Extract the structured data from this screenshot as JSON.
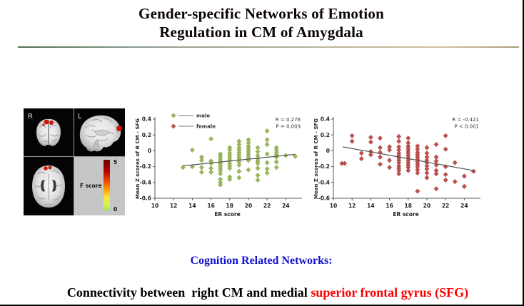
{
  "slide": {
    "title_line1": "Gender-specific Networks of Emotion",
    "title_line2": "Regulation in CM of Amygdala",
    "footer": {
      "line1": "Cognition Related Networks:",
      "line1_color": "#1212cf",
      "line2_black": "Connectivity between  right CM and medial ",
      "line2_red": "superior frontal gyrus (SFG)",
      "line2_red_color": "#fd0000"
    }
  },
  "brain_panel": {
    "label_r": "R",
    "label_l": "L",
    "activation_color": "#cf1408",
    "colorbar": {
      "title": "F score",
      "max_label": "5",
      "min_label": "0",
      "top_color": "#6b0000",
      "bottom_color": "#9fe84e"
    }
  },
  "chart_data": [
    {
      "type": "scatter",
      "series_name": "male",
      "marker_color": "#9bbb59",
      "marker_stroke": "#7a9a3e",
      "xlabel": "ER score",
      "ylabel": "Mean Z scores of R CM - SFG",
      "xlim": [
        10,
        25.5
      ],
      "ylim": [
        -0.6,
        0.4
      ],
      "xticks": [
        10,
        12,
        14,
        16,
        18,
        20,
        22,
        24
      ],
      "yticks": [
        0.4,
        0.2,
        0,
        -0.2,
        -0.4,
        -0.6
      ],
      "ytick_labels": [
        "0.4",
        "0.2",
        "0",
        "-0.2",
        "-0.4",
        "-0.6"
      ],
      "annotation": [
        "R = 0.276",
        "P = 0.003"
      ],
      "trend": {
        "x1": 13,
        "y1": -0.19,
        "x2": 25,
        "y2": -0.045
      },
      "trend_color": "#595959",
      "legend": [
        {
          "label": "male",
          "color": "#9bbb59",
          "stroke": "#7a9a3e"
        },
        {
          "label": "female",
          "color": "#c0504d",
          "stroke": "#9e3c39"
        }
      ],
      "points": [
        [
          13,
          -0.21
        ],
        [
          14,
          0.01
        ],
        [
          14,
          -0.2
        ],
        [
          15,
          -0.08
        ],
        [
          15,
          -0.12
        ],
        [
          15,
          -0.21
        ],
        [
          15,
          -0.27
        ],
        [
          16,
          0.15
        ],
        [
          16,
          -0.13
        ],
        [
          16,
          -0.16
        ],
        [
          16,
          -0.22
        ],
        [
          16,
          -0.27
        ],
        [
          17,
          -0.04
        ],
        [
          17,
          -0.07
        ],
        [
          17,
          -0.1
        ],
        [
          17,
          -0.13
        ],
        [
          17,
          -0.16
        ],
        [
          17,
          -0.19
        ],
        [
          17,
          -0.22
        ],
        [
          17,
          -0.25
        ],
        [
          17,
          -0.29
        ],
        [
          17,
          -0.36
        ],
        [
          17,
          -0.4
        ],
        [
          17,
          -0.43
        ],
        [
          18,
          0.04
        ],
        [
          18,
          0.01
        ],
        [
          18,
          -0.03
        ],
        [
          18,
          -0.06
        ],
        [
          18,
          -0.09
        ],
        [
          18,
          -0.12
        ],
        [
          18,
          -0.16
        ],
        [
          18,
          -0.19
        ],
        [
          18,
          -0.22
        ],
        [
          18,
          -0.33
        ],
        [
          18,
          -0.36
        ],
        [
          19,
          0.12
        ],
        [
          19,
          0.08
        ],
        [
          19,
          0.04
        ],
        [
          19,
          0.01
        ],
        [
          19,
          -0.02
        ],
        [
          19,
          -0.05
        ],
        [
          19,
          -0.08
        ],
        [
          19,
          -0.11
        ],
        [
          19,
          -0.14
        ],
        [
          19,
          -0.18
        ],
        [
          19,
          -0.26
        ],
        [
          19,
          -0.34
        ],
        [
          20,
          0.14
        ],
        [
          20,
          0.1
        ],
        [
          20,
          0.06
        ],
        [
          20,
          0.03
        ],
        [
          20,
          0.0
        ],
        [
          20,
          -0.03
        ],
        [
          20,
          -0.06
        ],
        [
          20,
          -0.09
        ],
        [
          20,
          -0.12
        ],
        [
          20,
          -0.24
        ],
        [
          21,
          0.04
        ],
        [
          21,
          -0.01
        ],
        [
          21,
          -0.06
        ],
        [
          21,
          -0.1
        ],
        [
          21,
          -0.13
        ],
        [
          21,
          -0.16
        ],
        [
          21,
          -0.22
        ],
        [
          21,
          -0.31
        ],
        [
          21,
          -0.37
        ],
        [
          22,
          0.25
        ],
        [
          22,
          0.14
        ],
        [
          22,
          0.08
        ],
        [
          22,
          -0.04
        ],
        [
          22,
          -0.15
        ],
        [
          22,
          -0.23
        ],
        [
          22,
          -0.28
        ],
        [
          23,
          0.04
        ],
        [
          23,
          0.01
        ],
        [
          23,
          -0.02
        ],
        [
          23,
          -0.05
        ],
        [
          23,
          -0.08
        ],
        [
          23,
          -0.14
        ],
        [
          23,
          -0.21
        ],
        [
          24,
          -0.06
        ],
        [
          25,
          -0.07
        ]
      ]
    },
    {
      "type": "scatter",
      "series_name": "female",
      "marker_color": "#c0504d",
      "marker_stroke": "#9e3c39",
      "xlabel": "ER score",
      "ylabel": "Mean Z scores of R CM - SFG",
      "xlim": [
        10,
        25.5
      ],
      "ylim": [
        -0.6,
        0.4
      ],
      "xticks": [
        10,
        12,
        14,
        16,
        18,
        20,
        22,
        24
      ],
      "yticks": [
        0.4,
        0.2,
        0,
        -0.2,
        -0.4,
        -0.6
      ],
      "ytick_labels": [
        "0.4",
        "0.2",
        "0",
        "-0.2",
        "-0.4",
        "-0.6"
      ],
      "annotation": [
        "R = -0.421",
        "P < 0.001"
      ],
      "trend": {
        "x1": 11,
        "y1": 0.05,
        "x2": 25,
        "y2": -0.25
      },
      "trend_color": "#595959",
      "points": [
        [
          10.9,
          -0.16
        ],
        [
          11.2,
          -0.16
        ],
        [
          12,
          0.19
        ],
        [
          12,
          0.12
        ],
        [
          13,
          -0.03
        ],
        [
          13,
          -0.1
        ],
        [
          14,
          0.17
        ],
        [
          14,
          0.11
        ],
        [
          14,
          -0.01
        ],
        [
          14,
          -0.05
        ],
        [
          15,
          0.16
        ],
        [
          15,
          0.04
        ],
        [
          15,
          -0.02
        ],
        [
          15,
          -0.08
        ],
        [
          15,
          -0.17
        ],
        [
          16,
          0.05
        ],
        [
          16,
          0.01
        ],
        [
          16,
          -0.12
        ],
        [
          16,
          -0.21
        ],
        [
          17,
          0.18
        ],
        [
          17,
          0.12
        ],
        [
          17,
          0.05
        ],
        [
          17,
          0.01
        ],
        [
          17,
          -0.03
        ],
        [
          17,
          -0.06
        ],
        [
          17,
          -0.09
        ],
        [
          17,
          -0.12
        ],
        [
          17,
          -0.15
        ],
        [
          17,
          -0.19
        ],
        [
          17,
          -0.22
        ],
        [
          17,
          -0.25
        ],
        [
          17,
          -0.29
        ],
        [
          18,
          0.16
        ],
        [
          18,
          0.1
        ],
        [
          18,
          0.06
        ],
        [
          18,
          0.03
        ],
        [
          18,
          0.0
        ],
        [
          18,
          -0.03
        ],
        [
          18,
          -0.06
        ],
        [
          18,
          -0.09
        ],
        [
          18,
          -0.12
        ],
        [
          18,
          -0.15
        ],
        [
          18,
          -0.18
        ],
        [
          18,
          -0.21
        ],
        [
          18,
          -0.25
        ],
        [
          19,
          0.06
        ],
        [
          19,
          0.02
        ],
        [
          19,
          -0.02
        ],
        [
          19,
          -0.05
        ],
        [
          19,
          -0.08
        ],
        [
          19,
          -0.11
        ],
        [
          19,
          -0.14
        ],
        [
          19,
          -0.17
        ],
        [
          19,
          -0.2
        ],
        [
          19,
          -0.24
        ],
        [
          19,
          -0.28
        ],
        [
          19,
          -0.51
        ],
        [
          20,
          0.04
        ],
        [
          20,
          -0.03
        ],
        [
          20,
          -0.08
        ],
        [
          20,
          -0.12
        ],
        [
          20,
          -0.15
        ],
        [
          20,
          -0.19
        ],
        [
          20,
          -0.23
        ],
        [
          20,
          -0.28
        ],
        [
          20,
          -0.34
        ],
        [
          21,
          0.08
        ],
        [
          21,
          -0.08
        ],
        [
          21,
          -0.13
        ],
        [
          21,
          -0.18
        ],
        [
          21,
          -0.25
        ],
        [
          21,
          -0.29
        ],
        [
          21,
          -0.48
        ],
        [
          22,
          0.19
        ],
        [
          22,
          0.02
        ],
        [
          22,
          -0.2
        ],
        [
          22,
          -0.3
        ],
        [
          22,
          -0.37
        ],
        [
          23,
          -0.15
        ],
        [
          23,
          -0.39
        ],
        [
          24,
          -0.32
        ],
        [
          24,
          -0.45
        ],
        [
          25,
          -0.26
        ]
      ]
    }
  ]
}
